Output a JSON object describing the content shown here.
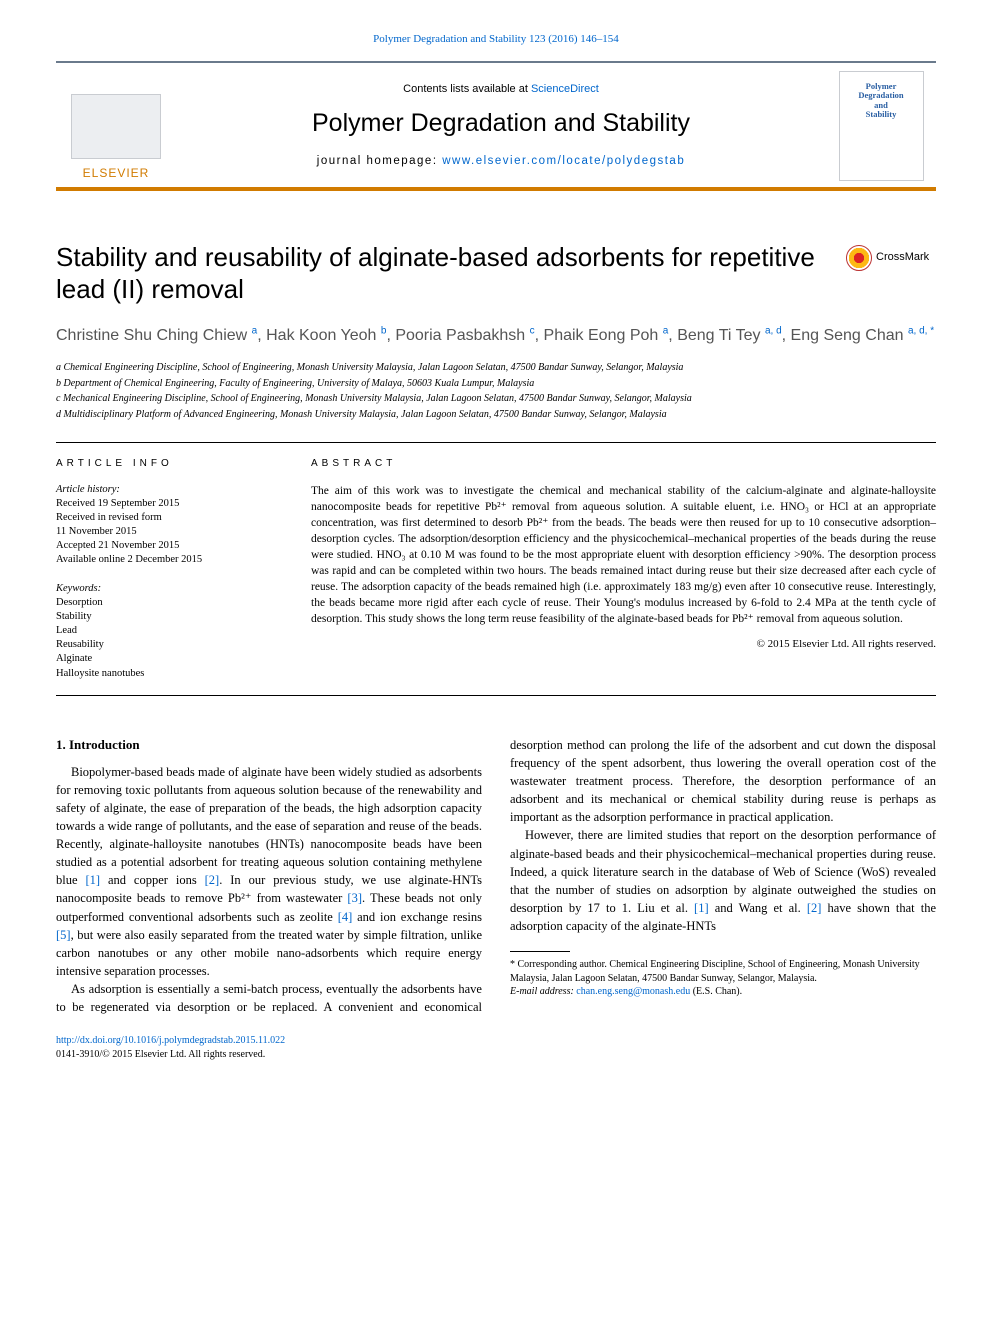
{
  "top_link": {
    "journal": "Polymer Degradation and Stability",
    "vol_pages": "123 (2016) 146–154"
  },
  "banner": {
    "contents_prefix": "Contents lists available at ",
    "contents_link": "ScienceDirect",
    "journal_title": "Polymer Degradation and Stability",
    "homepage_prefix": "journal homepage: ",
    "homepage_url": "www.elsevier.com/locate/polydegstab",
    "publisher": "ELSEVIER",
    "cover_line1": "Polymer",
    "cover_line2": "Degradation",
    "cover_line3": "and",
    "cover_line4": "Stability"
  },
  "crossmark": "CrossMark",
  "title": "Stability and reusability of alginate-based adsorbents for repetitive lead (II) removal",
  "authors_html": "Christine Shu Ching Chiew <sup>a</sup>, Hak Koon Yeoh <sup>b</sup>, Pooria Pasbakhsh <sup>c</sup>, Phaik Eong Poh <sup>a</sup>, Beng Ti Tey <sup>a, d</sup>, Eng Seng Chan <sup>a, d, *</sup>",
  "affiliations": [
    "a Chemical Engineering Discipline, School of Engineering, Monash University Malaysia, Jalan Lagoon Selatan, 47500 Bandar Sunway, Selangor, Malaysia",
    "b Department of Chemical Engineering, Faculty of Engineering, University of Malaya, 50603 Kuala Lumpur, Malaysia",
    "c Mechanical Engineering Discipline, School of Engineering, Monash University Malaysia, Jalan Lagoon Selatan, 47500 Bandar Sunway, Selangor, Malaysia",
    "d Multidisciplinary Platform of Advanced Engineering, Monash University Malaysia, Jalan Lagoon Selatan, 47500 Bandar Sunway, Selangor, Malaysia"
  ],
  "article_info_heading": "ARTICLE INFO",
  "abstract_heading": "ABSTRACT",
  "history": {
    "label": "Article history:",
    "received": "Received 19 September 2015",
    "revised": "Received in revised form",
    "revised_date": "11 November 2015",
    "accepted": "Accepted 21 November 2015",
    "online": "Available online 2 December 2015"
  },
  "keywords_label": "Keywords:",
  "keywords": [
    "Desorption",
    "Stability",
    "Lead",
    "Reusability",
    "Alginate",
    "Halloysite nanotubes"
  ],
  "abstract": "The aim of this work was to investigate the chemical and mechanical stability of the calcium-alginate and alginate-halloysite nanocomposite beads for repetitive Pb²⁺ removal from aqueous solution. A suitable eluent, i.e. HNO₃ or HCl at an appropriate concentration, was first determined to desorb Pb²⁺ from the beads. The beads were then reused for up to 10 consecutive adsorption–desorption cycles. The adsorption/desorption efficiency and the physicochemical–mechanical properties of the beads during the reuse were studied. HNO₃ at 0.10 M was found to be the most appropriate eluent with desorption efficiency >90%. The desorption process was rapid and can be completed within two hours. The beads remained intact during reuse but their size decreased after each cycle of reuse. The adsorption capacity of the beads remained high (i.e. approximately 183 mg/g) even after 10 consecutive reuse. Interestingly, the beads became more rigid after each cycle of reuse. Their Young's modulus increased by 6-fold to 2.4 MPa at the tenth cycle of desorption. This study shows the long term reuse feasibility of the alginate-based beads for Pb²⁺ removal from aqueous solution.",
  "abstract_copyright": "© 2015 Elsevier Ltd. All rights reserved.",
  "intro_heading": "1. Introduction",
  "para1_a": "Biopolymer-based beads made of alginate have been widely studied as adsorbents for removing toxic pollutants from aqueous solution because of the renewability and safety of alginate, the ease of preparation of the beads, the high adsorption capacity towards a wide range of pollutants, and the ease of separation and reuse of the beads. Recently, alginate-halloysite nanotubes (HNTs) nanocomposite beads have been studied as a potential adsorbent for treating aqueous solution containing methylene blue ",
  "ref1": "[1]",
  "para1_b": " and copper ions ",
  "ref2": "[2]",
  "para1_c": ". In our previous study, we use alginate-HNTs nanocomposite beads to remove Pb²⁺ from wastewater ",
  "ref3": "[3]",
  "para1_d": ". These beads not only outperformed conventional adsorbents such as zeolite ",
  "ref4": "[4]",
  "para1_e": " and ion exchange resins ",
  "ref5": "[5]",
  "para1_f": ", but were also easily separated from the treated water by simple filtration, unlike carbon nanotubes or any other mobile nano-adsorbents which require energy intensive separation processes.",
  "para2": "As adsorption is essentially a semi-batch process, eventually the adsorbents have to be regenerated via desorption or be replaced. A convenient and economical desorption method can prolong the life of the adsorbent and cut down the disposal frequency of the spent adsorbent, thus lowering the overall operation cost of the wastewater treatment process. Therefore, the desorption performance of an adsorbent and its mechanical or chemical stability during reuse is perhaps as important as the adsorption performance in practical application.",
  "para3_a": "However, there are limited studies that report on the desorption performance of alginate-based beads and their physicochemical–mechanical properties during reuse. Indeed, a quick literature search in the database of Web of Science (WoS) revealed that the number of studies on adsorption by alginate outweighed the studies on desorption by 17 to 1. Liu et al. ",
  "para3_b": " and Wang et al. ",
  "para3_c": " have shown that the adsorption capacity of the alginate-HNTs",
  "footnote": {
    "corresponding": "* Corresponding author. Chemical Engineering Discipline, School of Engineering, Monash University Malaysia, Jalan Lagoon Selatan, 47500 Bandar Sunway, Selangor, Malaysia.",
    "email_label": "E-mail address: ",
    "email": "chan.eng.seng@monash.edu",
    "email_suffix": " (E.S. Chan)."
  },
  "doi": {
    "link": "http://dx.doi.org/10.1016/j.polymdegradstab.2015.11.022",
    "issn": "0141-3910/© 2015 Elsevier Ltd. All rights reserved."
  },
  "colors": {
    "link": "#0066cc",
    "orange": "#d17b00",
    "banner_border": "#6a7a8c",
    "author_gray": "#555555"
  }
}
